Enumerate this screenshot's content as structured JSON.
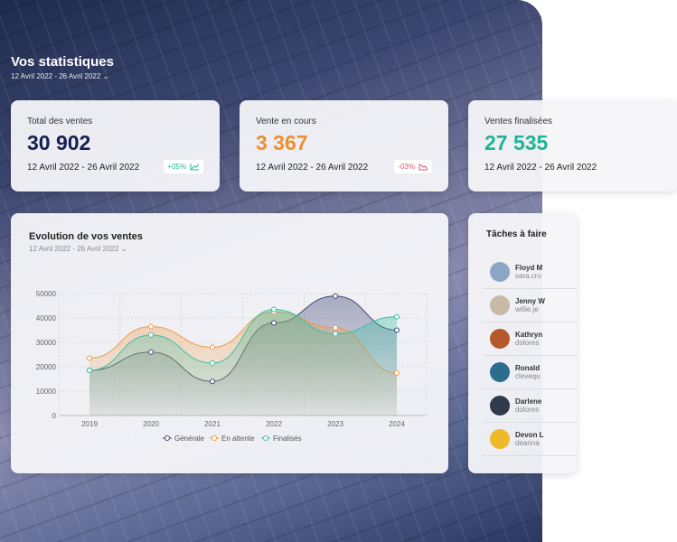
{
  "header": {
    "title": "Vos statistiques",
    "date_range": "12 Avril 2022 - 26 Avril 2022"
  },
  "kpis": [
    {
      "label": "Total des ventes",
      "value": "30 902",
      "date": "12 Avril 2022 - 26 Avril 2022",
      "delta": "+05%",
      "color": "#14204f",
      "delta_color": "#1fb496"
    },
    {
      "label": "Vente en cours",
      "value": "3 367",
      "date": "12 Avril 2022 - 26 Avril 2022",
      "delta": "-03%",
      "color": "#ee8f2e",
      "delta_color": "#e05670"
    },
    {
      "label": "Ventes finalisées",
      "value": "27 535",
      "date": "12 Avril 2022 - 26 Avril 2022",
      "color": "#1fb496"
    }
  ],
  "chart_panel": {
    "title": "Evolution de vos ventes",
    "date_range": "12 Avril 2022 - 26 Avril 2022"
  },
  "chart_data": {
    "type": "area",
    "x": [
      "2019",
      "2020",
      "2021",
      "2022",
      "2023",
      "2024"
    ],
    "yticks": [
      0,
      10000,
      20000,
      30000,
      40000,
      50000
    ],
    "ylim": [
      0,
      50000
    ],
    "grid": true,
    "legend": "bottom",
    "series": [
      {
        "name": "Générale",
        "color": "#3d4670",
        "values": [
          18500,
          26000,
          14000,
          38000,
          49000,
          35000
        ]
      },
      {
        "name": "En attente",
        "color": "#ee9a4a",
        "values": [
          23500,
          36500,
          28000,
          42500,
          36000,
          17500
        ]
      },
      {
        "name": "Finalisés",
        "color": "#3cbfa3",
        "values": [
          18500,
          33000,
          21500,
          43500,
          33500,
          40500
        ]
      }
    ]
  },
  "tasks": {
    "title": "Tâches à faire",
    "items": [
      {
        "name": "Floyd M",
        "email": "sara.cru",
        "color": "#8aa6c4"
      },
      {
        "name": "Jenny W",
        "email": "willie.je",
        "color": "#c9b9a7"
      },
      {
        "name": "Kathryn",
        "email": "dolores",
        "color": "#b5582b"
      },
      {
        "name": "Ronald",
        "email": "clevequ",
        "color": "#2c6d8f"
      },
      {
        "name": "Darlene",
        "email": "dolores",
        "color": "#2e3b4a"
      },
      {
        "name": "Devon L",
        "email": "deanna",
        "color": "#f0b92a"
      }
    ]
  }
}
